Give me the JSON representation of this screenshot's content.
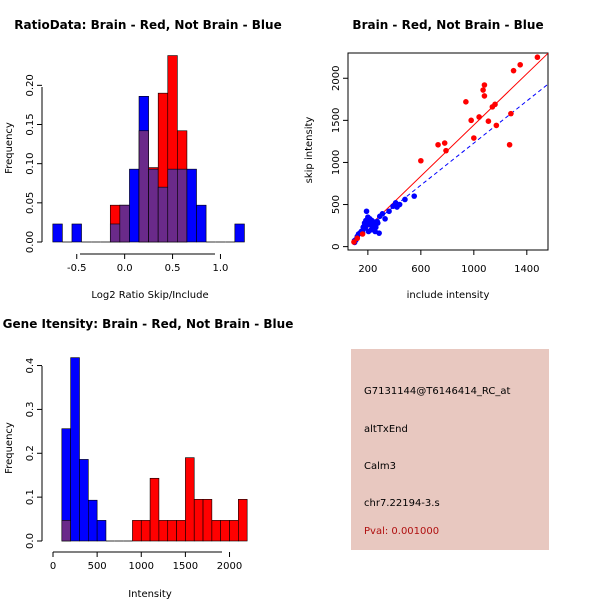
{
  "colors": {
    "brain": "#ff0000",
    "not_brain": "#0000ff",
    "overlap": "#6a2a8a",
    "info_bg": "#e8c8c0",
    "pval_text": "#b01010"
  },
  "chart_data": [
    {
      "id": "ratio",
      "type": "bar",
      "title": "RatioData: Brain - Red, Not Brain - Blue",
      "xlabel": "Log2 Ratio Skip/Include",
      "ylabel": "Frequency",
      "bin_start": -0.75,
      "bin_width": 0.1,
      "xlim": [
        -0.8,
        1.35
      ],
      "ylim": [
        0,
        0.24
      ],
      "x_ticks": [
        -0.5,
        0.0,
        0.5,
        1.0
      ],
      "x_tick_labels": [
        "-0.5",
        "0.0",
        "0.5",
        "1.0"
      ],
      "y_ticks": [
        0.0,
        0.05,
        0.1,
        0.15,
        0.2
      ],
      "y_tick_labels": [
        "0.00",
        "0.05",
        "0.10",
        "0.15",
        "0.20"
      ],
      "series": [
        {
          "name": "Brain",
          "values": [
            0,
            0,
            0,
            0,
            0,
            0,
            0.047,
            0.047,
            0,
            0.142,
            0.095,
            0.19,
            0.238,
            0.142,
            0,
            0,
            0,
            0,
            0,
            0
          ]
        },
        {
          "name": "Not Brain",
          "values": [
            0.023,
            0,
            0.023,
            0,
            0,
            0,
            0.023,
            0.047,
            0.093,
            0.186,
            0.093,
            0.07,
            0.093,
            0.093,
            0.093,
            0.047,
            0,
            0,
            0,
            0.023
          ]
        }
      ]
    },
    {
      "id": "scatter",
      "type": "scatter",
      "title": "Brain - Red, Not Brain - Blue",
      "xlabel": "include intensity",
      "ylabel": "skip intensity",
      "xlim": [
        50,
        1560
      ],
      "ylim": [
        -40,
        2300
      ],
      "x_ticks": [
        200,
        600,
        1000,
        1400
      ],
      "y_ticks": [
        0,
        500,
        1000,
        1500,
        2000
      ],
      "red_line": {
        "slope": 1.52,
        "intercept": -75
      },
      "blue_line": {
        "slope": 1.25,
        "intercept": -20
      },
      "series": [
        {
          "name": "Brain",
          "points": [
            [
              95,
              55
            ],
            [
              120,
              100
            ],
            [
              160,
              150
            ],
            [
              600,
              1020
            ],
            [
              730,
              1210
            ],
            [
              780,
              1230
            ],
            [
              790,
              1140
            ],
            [
              940,
              1720
            ],
            [
              980,
              1500
            ],
            [
              1000,
              1290
            ],
            [
              1040,
              1540
            ],
            [
              1070,
              1860
            ],
            [
              1080,
              1920
            ],
            [
              1080,
              1790
            ],
            [
              1110,
              1490
            ],
            [
              1140,
              1660
            ],
            [
              1160,
              1690
            ],
            [
              1170,
              1440
            ],
            [
              1270,
              1210
            ],
            [
              1280,
              1580
            ],
            [
              1300,
              2090
            ],
            [
              1350,
              2160
            ],
            [
              1480,
              2250
            ]
          ]
        },
        {
          "name": "Not Brain",
          "points": [
            [
              100,
              50
            ],
            [
              110,
              80
            ],
            [
              120,
              120
            ],
            [
              130,
              150
            ],
            [
              140,
              160
            ],
            [
              150,
              180
            ],
            [
              160,
              170
            ],
            [
              165,
              230
            ],
            [
              170,
              240
            ],
            [
              175,
              280
            ],
            [
              180,
              220
            ],
            [
              185,
              310
            ],
            [
              190,
              420
            ],
            [
              195,
              260
            ],
            [
              200,
              350
            ],
            [
              205,
              180
            ],
            [
              210,
              280
            ],
            [
              215,
              330
            ],
            [
              220,
              260
            ],
            [
              225,
              200
            ],
            [
              230,
              310
            ],
            [
              235,
              240
            ],
            [
              240,
              260
            ],
            [
              250,
              290
            ],
            [
              255,
              180
            ],
            [
              260,
              230
            ],
            [
              270,
              300
            ],
            [
              275,
              280
            ],
            [
              285,
              160
            ],
            [
              290,
              360
            ],
            [
              310,
              390
            ],
            [
              330,
              330
            ],
            [
              360,
              420
            ],
            [
              390,
              480
            ],
            [
              410,
              520
            ],
            [
              420,
              470
            ],
            [
              440,
              500
            ],
            [
              480,
              560
            ],
            [
              550,
              600
            ]
          ]
        }
      ]
    },
    {
      "id": "intensity",
      "type": "bar",
      "title": "Gene Itensity: Brain - Red, Not Brain - Blue",
      "xlabel": "Intensity",
      "ylabel": "Frequency",
      "bin_start": 100,
      "bin_width": 100,
      "xlim": [
        0,
        2300
      ],
      "ylim": [
        0,
        0.44
      ],
      "x_ticks": [
        0,
        500,
        1000,
        1500,
        2000
      ],
      "x_tick_labels": [
        "0",
        "500",
        "1000",
        "1500",
        "2000"
      ],
      "y_ticks": [
        0.0,
        0.1,
        0.2,
        0.3,
        0.4
      ],
      "y_tick_labels": [
        "0.0",
        "0.1",
        "0.2",
        "0.3",
        "0.4"
      ],
      "series": [
        {
          "name": "Brain",
          "values": [
            0.047,
            0,
            0,
            0,
            0,
            0,
            0,
            0,
            0.047,
            0.047,
            0.143,
            0.047,
            0.047,
            0.047,
            0.19,
            0.095,
            0.095,
            0.047,
            0.047,
            0.047,
            0.095
          ]
        },
        {
          "name": "Not Brain",
          "values": [
            0.256,
            0.418,
            0.186,
            0.093,
            0.047,
            0,
            0,
            0,
            0,
            0,
            0,
            0,
            0,
            0,
            0,
            0,
            0,
            0,
            0,
            0,
            0
          ]
        }
      ]
    }
  ],
  "info": {
    "probe_id": "G7131144@T6146414_RC_at",
    "event_type": "altTxEnd",
    "gene": "Calm3",
    "location": "chr7.22194-3.s",
    "pval": "Pval: 0.001000"
  }
}
